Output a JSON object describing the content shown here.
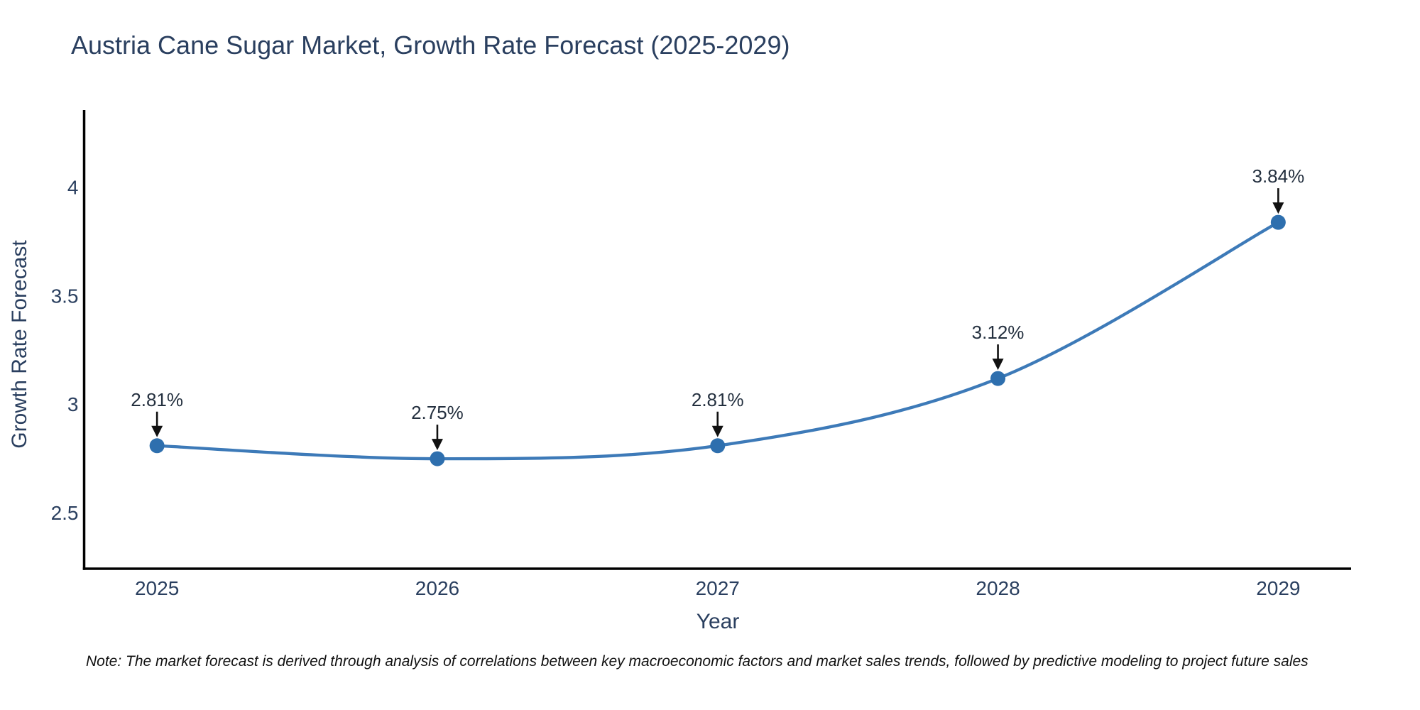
{
  "header": {
    "title": "Austria Cane Sugar Market, Growth Rate Forecast (2025-2029)"
  },
  "footer": {
    "note": "Note: The market forecast is derived through analysis of correlations between key macroeconomic factors and market sales trends, followed by predictive modeling to project future sales"
  },
  "chart_data": {
    "type": "line",
    "title": "Austria Cane Sugar Market, Growth Rate Forecast (2025-2029)",
    "xlabel": "Year",
    "ylabel": "Growth Rate Forecast",
    "x": [
      2025,
      2026,
      2027,
      2028,
      2029
    ],
    "x_tick_labels": [
      "2025",
      "2026",
      "2027",
      "2028",
      "2029"
    ],
    "series": [
      {
        "name": "Growth Rate Forecast",
        "values": [
          2.81,
          2.75,
          2.81,
          3.12,
          3.84
        ]
      }
    ],
    "point_labels": [
      "2.81%",
      "2.75%",
      "2.81%",
      "3.12%",
      "3.84%"
    ],
    "y_ticks": [
      2.5,
      3,
      3.5,
      4
    ],
    "y_tick_labels": [
      "2.5",
      "3",
      "3.5",
      "4"
    ],
    "xlim": [
      2024.74,
      2029.26
    ],
    "ylim": [
      2.243,
      4.351
    ],
    "grid": false,
    "legend": "none",
    "line_shape": "spline",
    "marker": "circle",
    "annotation_style": "arrow-down",
    "colors": {
      "line": "#3d7ab8",
      "marker": "#2e6fae",
      "axis": "#000000",
      "tick_text": "#2a3f5f",
      "title_text": "#2a3f5f",
      "annotation_text": "#24303f",
      "arrow": "#111111",
      "background": "#ffffff"
    }
  }
}
